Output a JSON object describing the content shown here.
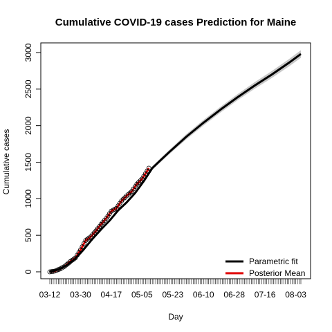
{
  "chart_data": {
    "type": "line",
    "title": "Cumulative COVID-19 cases Prediction for Maine",
    "xlabel": "Day",
    "ylabel": "Cumulative cases",
    "x_tick_labels": [
      "03-12",
      "03-30",
      "04-17",
      "05-05",
      "05-23",
      "06-10",
      "06-28",
      "07-16",
      "08-03"
    ],
    "x_tick_day_index": [
      0,
      18,
      36,
      54,
      72,
      90,
      108,
      126,
      144
    ],
    "x_day_range": [
      0,
      147
    ],
    "y_ticks": [
      0,
      500,
      1000,
      1500,
      2000,
      2500,
      3000
    ],
    "ylim": [
      -60,
      3150
    ],
    "grid": false,
    "legend_position": "bottom-right",
    "legend": [
      {
        "label": "Parametric fit",
        "color": "#000000"
      },
      {
        "label": "Posterior Mean",
        "color": "#e00000"
      }
    ],
    "series": [
      {
        "name": "Parametric fit",
        "color": "#000000",
        "day": [
          0,
          5,
          10,
          15,
          20,
          25,
          30,
          35,
          40,
          45,
          50,
          55,
          60,
          65,
          70,
          80,
          90,
          100,
          110,
          120,
          130,
          140,
          147
        ],
        "values": [
          0,
          30,
          90,
          180,
          310,
          450,
          580,
          700,
          840,
          950,
          1080,
          1240,
          1420,
          1530,
          1640,
          1850,
          2040,
          2220,
          2390,
          2550,
          2700,
          2860,
          2980
        ],
        "band_halfwidth": [
          5,
          8,
          10,
          10,
          10,
          12,
          14,
          16,
          18,
          20,
          22,
          24,
          25,
          28,
          30,
          35,
          38,
          40,
          42,
          45,
          48,
          50,
          52
        ]
      },
      {
        "name": "Posterior Mean",
        "color": "#e00000",
        "day": [
          0,
          3,
          6,
          9,
          12,
          15,
          18,
          21,
          24,
          27,
          30,
          33,
          36,
          39,
          42,
          45,
          48,
          51,
          54,
          57,
          58
        ],
        "values": [
          0,
          10,
          40,
          80,
          140,
          190,
          300,
          430,
          480,
          560,
          650,
          730,
          830,
          870,
          970,
          1040,
          1100,
          1200,
          1270,
          1380,
          1420
        ]
      }
    ]
  }
}
